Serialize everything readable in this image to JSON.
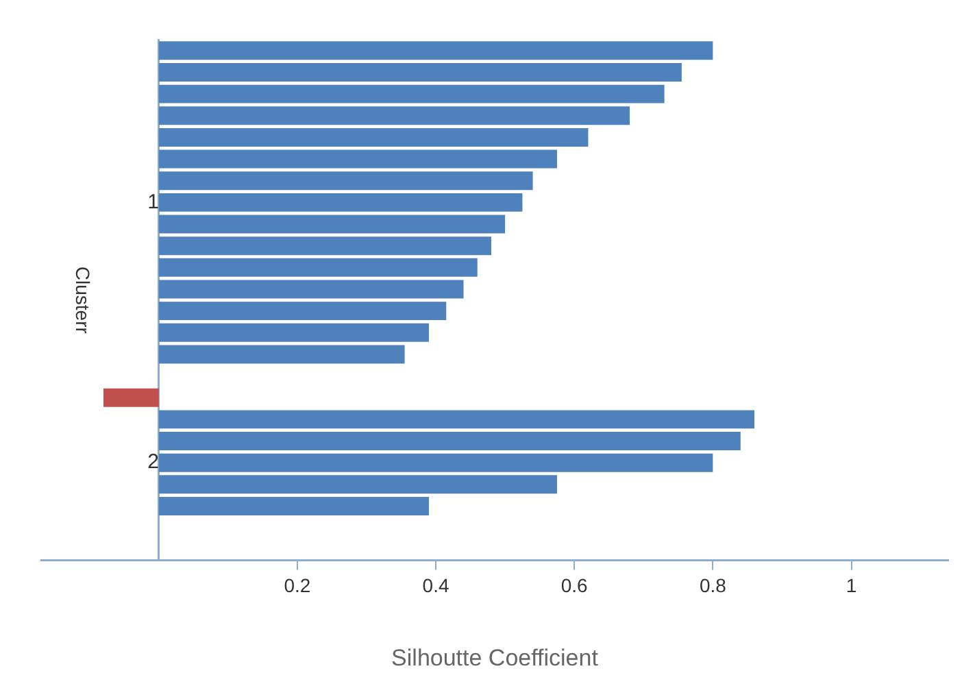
{
  "chart_data": {
    "type": "bar",
    "orientation": "horizontal",
    "xlabel": "Silhoutte Coefficient",
    "ylabel": "Clusterr",
    "categories": [
      null,
      null,
      null,
      null,
      null,
      null,
      null,
      "1",
      null,
      null,
      null,
      null,
      null,
      null,
      null,
      null,
      null,
      null,
      null,
      "2",
      null,
      null,
      null,
      null
    ],
    "values": [
      0.8,
      0.755,
      0.73,
      0.68,
      0.62,
      0.575,
      0.54,
      0.525,
      0.5,
      0.48,
      0.46,
      0.44,
      0.415,
      0.39,
      0.355,
      null,
      -0.08,
      0.86,
      0.84,
      0.8,
      0.575,
      0.39,
      null,
      null
    ],
    "colors": [
      "#4f81bd",
      "#4f81bd",
      "#4f81bd",
      "#4f81bd",
      "#4f81bd",
      "#4f81bd",
      "#4f81bd",
      "#4f81bd",
      "#4f81bd",
      "#4f81bd",
      "#4f81bd",
      "#4f81bd",
      "#4f81bd",
      "#4f81bd",
      "#4f81bd",
      "#4f81bd",
      "#c0504d",
      "#4f81bd",
      "#4f81bd",
      "#4f81bd",
      "#4f81bd",
      "#4f81bd",
      "#4f81bd",
      "#4f81bd"
    ],
    "xlim": [
      -0.17,
      1.14
    ],
    "xticks": [
      0.2,
      0.4,
      0.6,
      0.8,
      1
    ]
  }
}
